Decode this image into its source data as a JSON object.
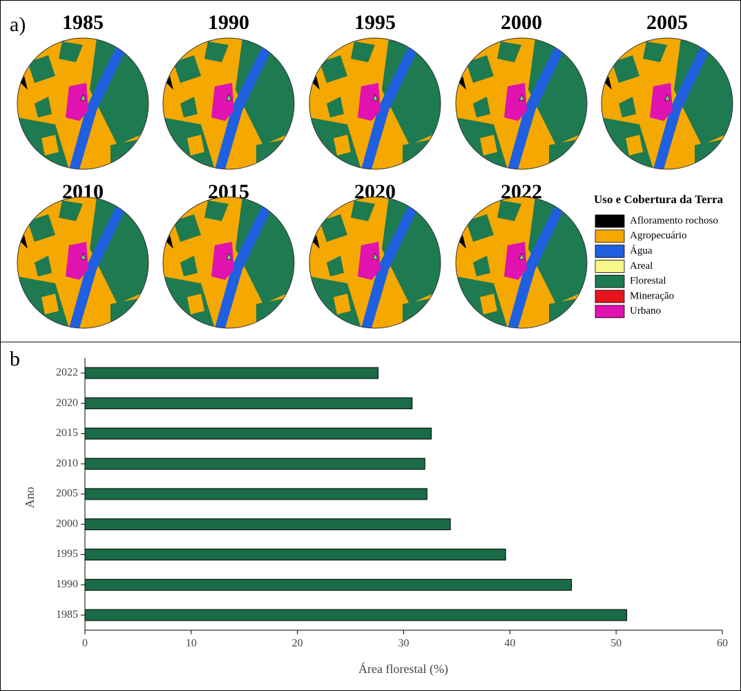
{
  "panel_a": {
    "label": "a)",
    "maps": [
      "1985",
      "1990",
      "1995",
      "2000",
      "2005",
      "2010",
      "2015",
      "2020",
      "2022"
    ],
    "legend": {
      "title": "Uso e Cobertura da Terra",
      "items": [
        {
          "name": "Afloramento rochoso",
          "color": "#000000"
        },
        {
          "name": "Agropecuário",
          "color": "#f5a800"
        },
        {
          "name": "Água",
          "color": "#1f5fe0"
        },
        {
          "name": "Areal",
          "color": "#f7f78a"
        },
        {
          "name": "Florestal",
          "color": "#1e7a50"
        },
        {
          "name": "Mineração",
          "color": "#e8141c"
        },
        {
          "name": "Urbano",
          "color": "#e012b0"
        }
      ]
    }
  },
  "panel_b_label": "b",
  "chart_data": {
    "type": "bar",
    "orientation": "horizontal",
    "categories": [
      "1985",
      "1990",
      "1995",
      "2000",
      "2005",
      "2010",
      "2015",
      "2020",
      "2022"
    ],
    "values": [
      51.0,
      45.8,
      39.6,
      34.4,
      32.2,
      32.0,
      32.6,
      30.8,
      27.6
    ],
    "color": "#1b6b48",
    "xlabel": "Área florestal (%)",
    "ylabel": "Ano",
    "xlim": [
      0,
      60
    ],
    "xticks": [
      0,
      10,
      20,
      30,
      40,
      50,
      60
    ]
  }
}
